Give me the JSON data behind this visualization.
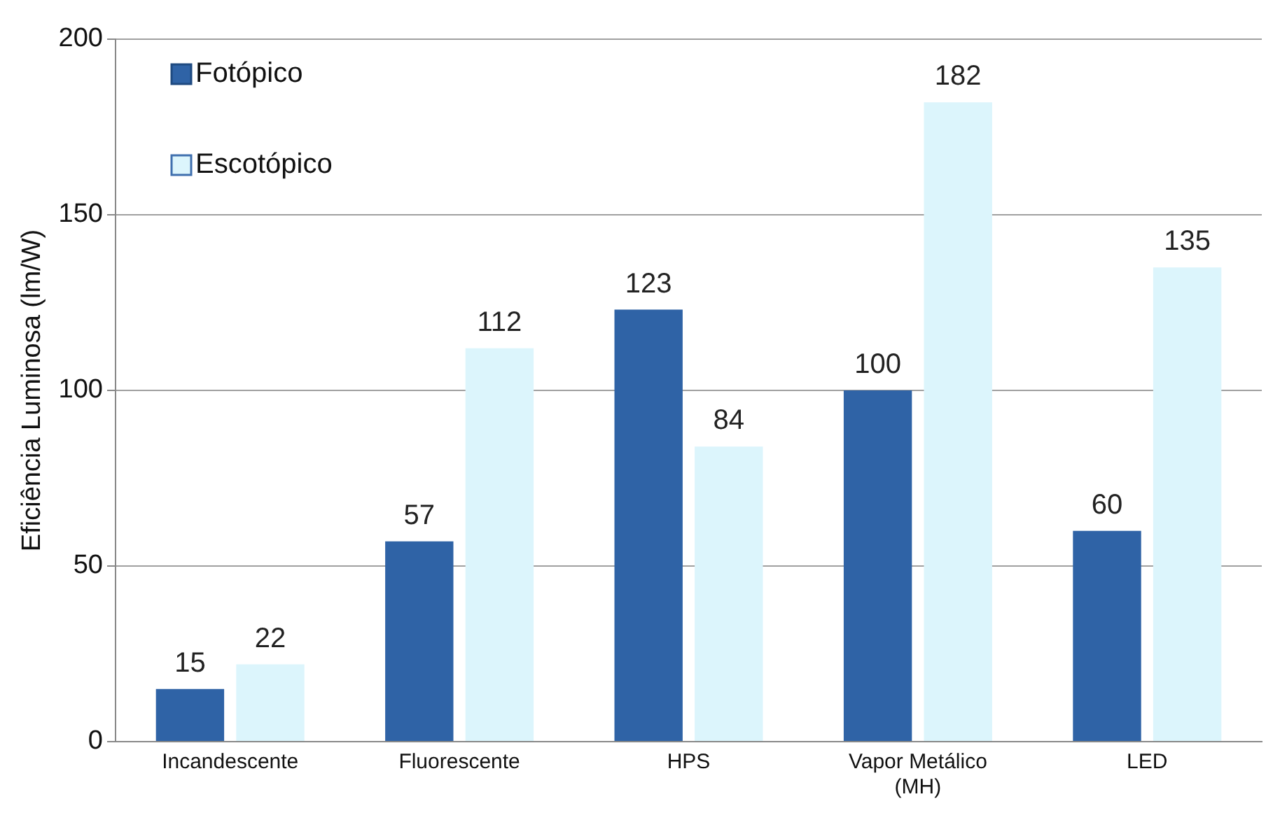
{
  "chart_data": {
    "type": "bar",
    "ylabel": "Eficiência Luminosa (lm/W)",
    "categories": [
      "Incandescente",
      "Fluorescente",
      "HPS",
      "Vapor Metálico\n(MH)",
      "LED"
    ],
    "series": [
      {
        "name": "Fotópico",
        "color": "#2f63a6",
        "values": [
          15,
          57,
          123,
          100,
          60
        ]
      },
      {
        "name": "Escotópico",
        "color": "#dcf5fc",
        "values": [
          22,
          112,
          84,
          182,
          135
        ]
      }
    ],
    "ylim": [
      0,
      200
    ],
    "yticks": [
      0,
      50,
      100,
      150,
      200
    ],
    "grid": "y",
    "legend": "top left",
    "data_labels": true
  }
}
